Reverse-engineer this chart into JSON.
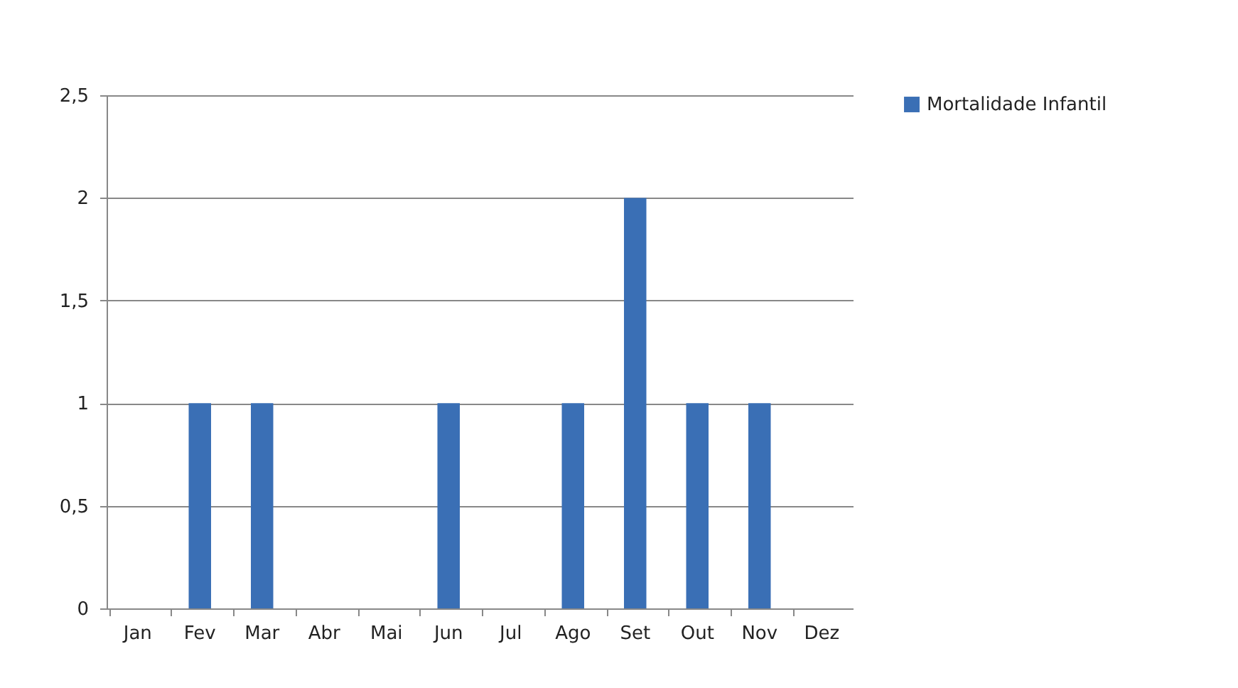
{
  "chart_data": {
    "type": "bar",
    "categories": [
      "Jan",
      "Fev",
      "Mar",
      "Abr",
      "Mai",
      "Jun",
      "Jul",
      "Ago",
      "Set",
      "Out",
      "Nov",
      "Dez"
    ],
    "series": [
      {
        "name": "Mortalidade Infantil",
        "color": "#3a6fb5",
        "values": [
          0,
          1,
          1,
          0,
          0,
          1,
          0,
          1,
          2,
          1,
          1,
          0
        ]
      }
    ],
    "ylim": [
      0,
      2.5
    ],
    "yticks": [
      0,
      {
        "value": 0.5,
        "label": "0,5"
      },
      1,
      {
        "value": 1.5,
        "label": "1,5"
      },
      2,
      {
        "value": 2.5,
        "label": "2,5"
      }
    ],
    "grid": "y",
    "legend": "right"
  }
}
